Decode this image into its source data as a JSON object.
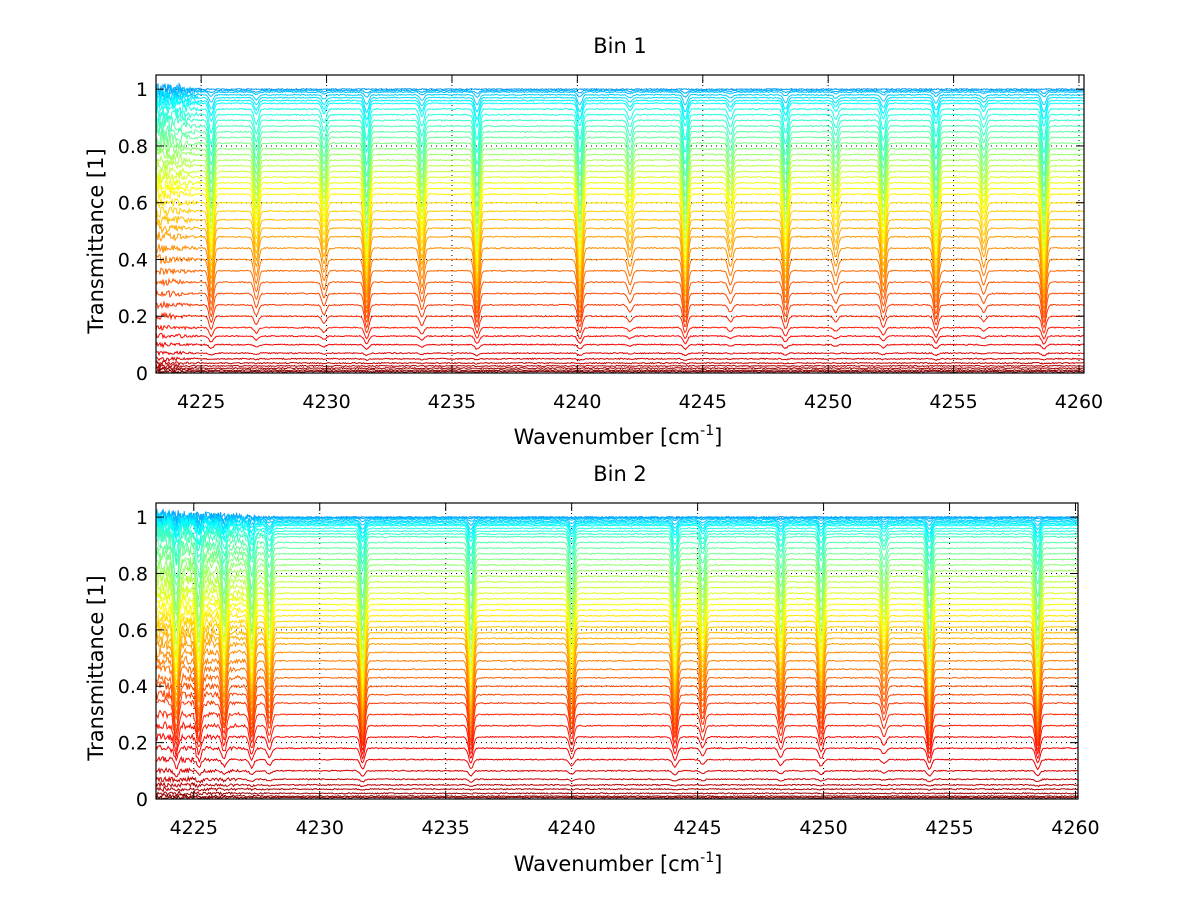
{
  "chart_data": [
    {
      "type": "line",
      "title": "Bin 1",
      "xlabel_main": "Wavenumber [cm",
      "xlabel_sup": "-1",
      "xlabel_end": "]",
      "ylabel": "Transmittance [1]",
      "xlim": [
        4223.2,
        4260.2
      ],
      "ylim": [
        0,
        1.05
      ],
      "xticks": [
        4225,
        4230,
        4235,
        4240,
        4245,
        4250,
        4255,
        4260
      ],
      "yticks": [
        0,
        0.2,
        0.4,
        0.6,
        0.8,
        1
      ],
      "xtick_labels": [
        "4225",
        "4230",
        "4235",
        "4240",
        "4245",
        "4250",
        "4255",
        "4260"
      ],
      "ytick_labels": [
        "0",
        "0.2",
        "0.4",
        "0.6",
        "0.8",
        "1"
      ],
      "grid": true,
      "colormap": "jet",
      "series_count": 45,
      "series_baselines": [
        1.0,
        0.995,
        0.99,
        0.98,
        0.97,
        0.96,
        0.95,
        0.93,
        0.91,
        0.89,
        0.87,
        0.85,
        0.83,
        0.81,
        0.79,
        0.77,
        0.75,
        0.73,
        0.71,
        0.69,
        0.67,
        0.65,
        0.63,
        0.6,
        0.57,
        0.54,
        0.51,
        0.48,
        0.44,
        0.4,
        0.36,
        0.32,
        0.28,
        0.24,
        0.2,
        0.16,
        0.13,
        0.1,
        0.07,
        0.05,
        0.035,
        0.025,
        0.017,
        0.01,
        0.005
      ],
      "absorption_lines": [
        {
          "x": 4225.4,
          "depth": 0.35
        },
        {
          "x": 4227.2,
          "depth": 0.22
        },
        {
          "x": 4229.9,
          "depth": 0.2
        },
        {
          "x": 4231.6,
          "depth": 0.45
        },
        {
          "x": 4233.8,
          "depth": 0.25
        },
        {
          "x": 4236.0,
          "depth": 0.45
        },
        {
          "x": 4240.1,
          "depth": 0.45
        },
        {
          "x": 4242.1,
          "depth": 0.15
        },
        {
          "x": 4244.3,
          "depth": 0.45
        },
        {
          "x": 4246.1,
          "depth": 0.15
        },
        {
          "x": 4248.3,
          "depth": 0.35
        },
        {
          "x": 4250.3,
          "depth": 0.15
        },
        {
          "x": 4252.2,
          "depth": 0.3
        },
        {
          "x": 4254.3,
          "depth": 0.4
        },
        {
          "x": 4256.2,
          "depth": 0.15
        },
        {
          "x": 4258.6,
          "depth": 0.45
        }
      ]
    },
    {
      "type": "line",
      "title": "Bin 2",
      "xlabel_main": "Wavenumber [cm",
      "xlabel_sup": "-1",
      "xlabel_end": "]",
      "ylabel": "Transmittance [1]",
      "xlim": [
        4223.5,
        4260.1
      ],
      "ylim": [
        0,
        1.05
      ],
      "xticks": [
        4225,
        4230,
        4235,
        4240,
        4245,
        4250,
        4255,
        4260
      ],
      "yticks": [
        0,
        0.2,
        0.4,
        0.6,
        0.8,
        1
      ],
      "xtick_labels": [
        "4225",
        "4230",
        "4235",
        "4240",
        "4245",
        "4250",
        "4255",
        "4260"
      ],
      "ytick_labels": [
        "0",
        "0.2",
        "0.4",
        "0.6",
        "0.8",
        "1"
      ],
      "grid": true,
      "colormap": "jet",
      "series_count": 50,
      "series_baselines": [
        1.0,
        0.998,
        0.995,
        0.99,
        0.985,
        0.98,
        0.975,
        0.97,
        0.96,
        0.95,
        0.94,
        0.93,
        0.91,
        0.89,
        0.87,
        0.85,
        0.83,
        0.81,
        0.79,
        0.77,
        0.75,
        0.73,
        0.71,
        0.69,
        0.67,
        0.65,
        0.63,
        0.61,
        0.59,
        0.57,
        0.55,
        0.52,
        0.49,
        0.46,
        0.43,
        0.4,
        0.37,
        0.34,
        0.3,
        0.26,
        0.22,
        0.18,
        0.14,
        0.1,
        0.07,
        0.05,
        0.035,
        0.02,
        0.01,
        0.005
      ],
      "absorption_lines": [
        {
          "x": 4224.3,
          "depth": 0.4
        },
        {
          "x": 4225.2,
          "depth": 0.4
        },
        {
          "x": 4226.2,
          "depth": 0.35
        },
        {
          "x": 4227.3,
          "depth": 0.4
        },
        {
          "x": 4228.0,
          "depth": 0.3
        },
        {
          "x": 4231.7,
          "depth": 0.5
        },
        {
          "x": 4236.0,
          "depth": 0.5
        },
        {
          "x": 4240.0,
          "depth": 0.35
        },
        {
          "x": 4244.1,
          "depth": 0.4
        },
        {
          "x": 4245.2,
          "depth": 0.25
        },
        {
          "x": 4248.3,
          "depth": 0.3
        },
        {
          "x": 4249.9,
          "depth": 0.35
        },
        {
          "x": 4252.4,
          "depth": 0.2
        },
        {
          "x": 4254.2,
          "depth": 0.5
        },
        {
          "x": 4258.5,
          "depth": 0.5
        }
      ]
    }
  ]
}
